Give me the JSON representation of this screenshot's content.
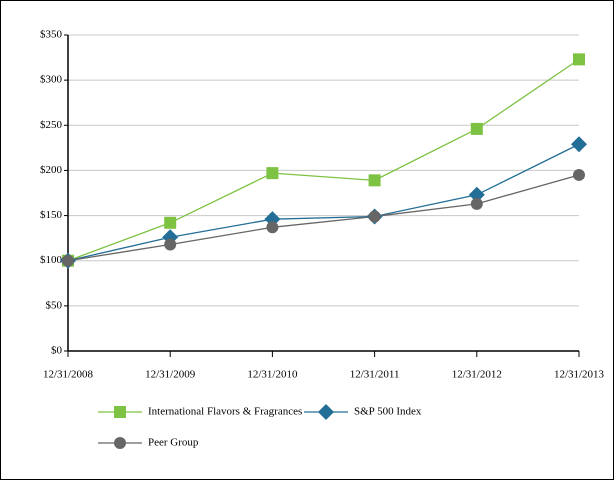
{
  "chart_data": {
    "type": "line",
    "categories": [
      "12/31/2008",
      "12/31/2009",
      "12/31/2010",
      "12/31/2011",
      "12/31/2012",
      "12/31/2013"
    ],
    "series": [
      {
        "name": "International Flavors & Fragrances",
        "color": "#7dc242",
        "marker": "square",
        "values": [
          100,
          142,
          197,
          189,
          246,
          323
        ]
      },
      {
        "name": "S&P 500 Index",
        "color": "#236e96",
        "marker": "diamond",
        "values": [
          100,
          126,
          146,
          149,
          173,
          229
        ]
      },
      {
        "name": "Peer Group",
        "color": "#666666",
        "marker": "circle",
        "values": [
          100,
          118,
          137,
          149,
          163,
          195
        ]
      }
    ],
    "ylim": [
      0,
      350
    ],
    "yticks": [
      {
        "value": 0,
        "label": "$0"
      },
      {
        "value": 50,
        "label": "$50"
      },
      {
        "value": 100,
        "label": "$100"
      },
      {
        "value": 150,
        "label": "$150"
      },
      {
        "value": 200,
        "label": "$200"
      },
      {
        "value": 250,
        "label": "$250"
      },
      {
        "value": 300,
        "label": "$300"
      },
      {
        "value": 350,
        "label": "$350"
      }
    ],
    "grid": true
  }
}
